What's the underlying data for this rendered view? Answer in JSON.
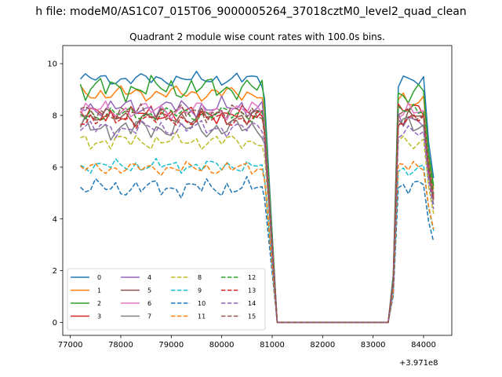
{
  "figure": {
    "suptitle": "h file: modeM0/AS1C07_015T06_9000005264_37018cztM0_level2_quad_clean",
    "title": "Quadrant 2 module wise count rates with 100.0s bins.",
    "offset_label": "+3.971e8"
  },
  "chart_data": {
    "type": "line",
    "title": "Quadrant 2 module wise count rates with 100.0s bins.",
    "xlabel": "",
    "ylabel": "",
    "x_offset": 397100000,
    "xlim": [
      76850,
      84560
    ],
    "ylim": [
      -0.5,
      10.7
    ],
    "xticks": [
      77000,
      78000,
      79000,
      80000,
      81000,
      82000,
      83000,
      84000
    ],
    "yticks": [
      0,
      2,
      4,
      6,
      8,
      10
    ],
    "grid": false,
    "legend_placement": "lower-left",
    "legend_columns": 4,
    "series": [
      {
        "name": "0",
        "color": "#1f77b4",
        "dash": "solid",
        "level": 9.4,
        "noise": 0.25,
        "phase": 0.0,
        "p2": 9.3
      },
      {
        "name": "1",
        "color": "#ff7f0e",
        "dash": "solid",
        "level": 8.85,
        "noise": 0.3,
        "phase": 1.1,
        "p2": 8.6
      },
      {
        "name": "2",
        "color": "#2ca02c",
        "dash": "solid",
        "level": 9.05,
        "noise": 0.45,
        "phase": 2.3,
        "p2": 8.8
      },
      {
        "name": "3",
        "color": "#d62728",
        "dash": "solid",
        "level": 8.05,
        "noise": 0.3,
        "phase": 3.1,
        "p2": 8.2
      },
      {
        "name": "4",
        "color": "#9467bd",
        "dash": "solid",
        "level": 8.3,
        "noise": 0.35,
        "phase": 4.2,
        "p2": 7.9
      },
      {
        "name": "5",
        "color": "#8c564b",
        "dash": "solid",
        "level": 7.95,
        "noise": 0.35,
        "phase": 5.0,
        "p2": 8.0
      },
      {
        "name": "6",
        "color": "#e377c2",
        "dash": "solid",
        "level": 8.2,
        "noise": 0.35,
        "phase": 5.7,
        "p2": 8.1
      },
      {
        "name": "7",
        "color": "#7f7f7f",
        "dash": "solid",
        "level": 7.5,
        "noise": 0.4,
        "phase": 6.4,
        "p2": 7.6
      },
      {
        "name": "8",
        "color": "#bcbd22",
        "dash": "dashed",
        "level": 7.0,
        "noise": 0.3,
        "phase": 7.1,
        "p2": 7.0
      },
      {
        "name": "9",
        "color": "#17becf",
        "dash": "dashed",
        "level": 6.05,
        "noise": 0.25,
        "phase": 7.9,
        "p2": 5.9
      },
      {
        "name": "10",
        "color": "#1f77b4",
        "dash": "dashed",
        "level": 5.2,
        "noise": 0.35,
        "phase": 8.6,
        "p2": 5.2
      },
      {
        "name": "11",
        "color": "#ff7f0e",
        "dash": "dashed",
        "level": 5.95,
        "noise": 0.25,
        "phase": 9.3,
        "p2": 6.0
      },
      {
        "name": "12",
        "color": "#2ca02c",
        "dash": "dashed",
        "level": 8.05,
        "noise": 0.3,
        "phase": 10.2,
        "p2": 8.3
      },
      {
        "name": "13",
        "color": "#d62728",
        "dash": "dashed",
        "level": 7.85,
        "noise": 0.3,
        "phase": 11.0,
        "p2": 7.9
      },
      {
        "name": "14",
        "color": "#9467bd",
        "dash": "dashed",
        "level": 7.5,
        "noise": 0.3,
        "phase": 11.8,
        "p2": 7.3
      },
      {
        "name": "15",
        "color": "#8c564b",
        "dash": "dashed",
        "level": 8.1,
        "noise": 0.3,
        "phase": 12.5,
        "p2": 8.0
      }
    ],
    "segments": [
      {
        "start": 77200,
        "end": 80800,
        "kind": "active"
      },
      {
        "start": 81100,
        "end": 83300,
        "kind": "zero"
      },
      {
        "start": 83500,
        "end": 84000,
        "kind": "active"
      }
    ]
  }
}
